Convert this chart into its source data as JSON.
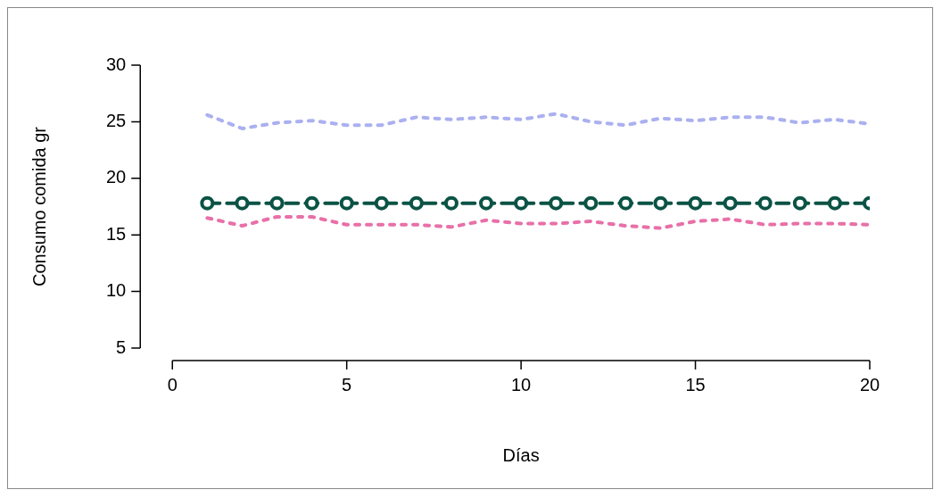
{
  "chart_data": {
    "type": "line",
    "xlabel": "Días",
    "ylabel": "Consumo comida gr",
    "x": [
      1,
      2,
      3,
      4,
      5,
      6,
      7,
      8,
      9,
      10,
      11,
      12,
      13,
      14,
      15,
      16,
      17,
      18,
      19,
      20
    ],
    "xlim": [
      0,
      20
    ],
    "xticks": [
      0,
      5,
      10,
      15,
      20
    ],
    "ylim": [
      5,
      30
    ],
    "yticks": [
      5,
      10,
      15,
      20,
      25,
      30
    ],
    "grid": false,
    "legend": false,
    "series": [
      {
        "color": "#aab0f0",
        "line_style": "dotted",
        "marker": "none",
        "values": [
          25.6,
          24.4,
          24.9,
          25.1,
          24.7,
          24.7,
          25.4,
          25.2,
          25.4,
          25.2,
          25.7,
          25.0,
          24.7,
          25.3,
          25.1,
          25.4,
          25.4,
          24.9,
          25.2,
          24.8
        ]
      },
      {
        "color": "#e870a8",
        "line_style": "dotted",
        "marker": "none",
        "values": [
          16.5,
          15.8,
          16.6,
          16.6,
          15.9,
          15.9,
          15.9,
          15.7,
          16.3,
          16.0,
          16.0,
          16.2,
          15.8,
          15.6,
          16.2,
          16.4,
          15.9,
          16.0,
          16.0,
          15.9
        ]
      },
      {
        "color": "#0b5345",
        "line_style": "dashed",
        "marker": "circle",
        "values": [
          17.8,
          17.8,
          17.8,
          17.8,
          17.8,
          17.8,
          17.8,
          17.8,
          17.8,
          17.8,
          17.8,
          17.8,
          17.8,
          17.8,
          17.8,
          17.8,
          17.8,
          17.8,
          17.8,
          17.8
        ]
      }
    ]
  }
}
